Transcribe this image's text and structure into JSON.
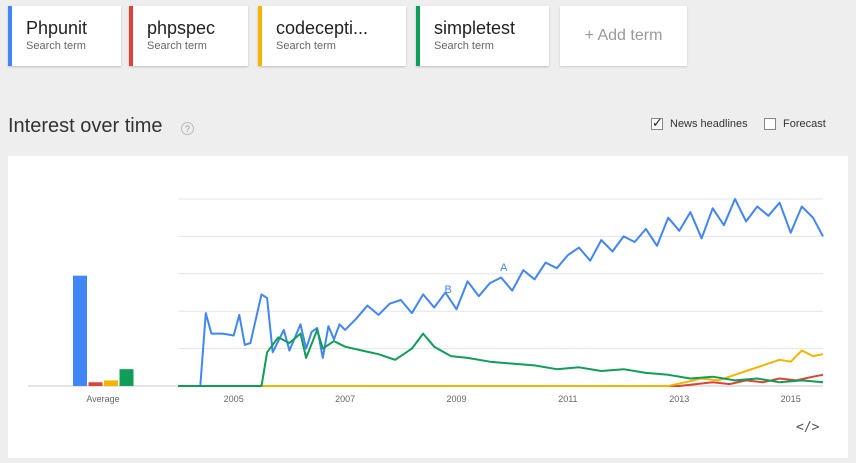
{
  "terms": [
    {
      "name": "Phpunit",
      "sub": "Search term",
      "color": "#4285f4"
    },
    {
      "name": "phpspec",
      "sub": "Search term",
      "color": "#db4437"
    },
    {
      "name": "codecepti...",
      "sub": "Search term",
      "color": "#f4b400"
    },
    {
      "name": "simpletest",
      "sub": "Search term",
      "color": "#0f9d58"
    }
  ],
  "add_term": "+ Add term",
  "section_title": "Interest over time",
  "help_icon": "?",
  "options": {
    "news": "News headlines",
    "news_checked": true,
    "forecast": "Forecast",
    "forecast_checked": false
  },
  "embed_icon": "</>",
  "chart_data": {
    "type": "line",
    "xlabel": "",
    "ylabel": "",
    "x_ticks": [
      "2005",
      "2007",
      "2009",
      "2011",
      "2013",
      "2015"
    ],
    "x_range": [
      2004.0,
      2015.58
    ],
    "ylim": [
      0,
      100
    ],
    "average_label": "Average",
    "averages": [
      {
        "name": "Phpunit",
        "value": 59
      },
      {
        "name": "phpspec",
        "value": 2
      },
      {
        "name": "codecepti...",
        "value": 3
      },
      {
        "name": "simpletest",
        "value": 9
      }
    ],
    "annotations": [
      {
        "label": "A",
        "x": 2009.85,
        "y": 60
      },
      {
        "label": "B",
        "x": 2008.85,
        "y": 48
      }
    ],
    "series": [
      {
        "name": "Phpunit",
        "color": "#4285f4",
        "x": [
          2004.0,
          2004.4,
          2004.5,
          2004.6,
          2004.8,
          2005.0,
          2005.1,
          2005.2,
          2005.3,
          2005.5,
          2005.6,
          2005.7,
          2005.8,
          2005.9,
          2006.0,
          2006.1,
          2006.2,
          2006.3,
          2006.4,
          2006.5,
          2006.6,
          2006.7,
          2006.8,
          2006.9,
          2007.0,
          2007.2,
          2007.4,
          2007.6,
          2007.8,
          2008.0,
          2008.2,
          2008.4,
          2008.6,
          2008.8,
          2009.0,
          2009.2,
          2009.4,
          2009.6,
          2009.8,
          2010.0,
          2010.2,
          2010.4,
          2010.6,
          2010.8,
          2011.0,
          2011.2,
          2011.4,
          2011.6,
          2011.8,
          2012.0,
          2012.2,
          2012.4,
          2012.6,
          2012.8,
          2013.0,
          2013.2,
          2013.4,
          2013.6,
          2013.8,
          2014.0,
          2014.2,
          2014.4,
          2014.6,
          2014.8,
          2015.0,
          2015.2,
          2015.4,
          2015.58
        ],
        "values": [
          0,
          0,
          39,
          28,
          28,
          27,
          38,
          22,
          23,
          49,
          47,
          18,
          24,
          30,
          19,
          26,
          33,
          20,
          29,
          31,
          15,
          32,
          25,
          33,
          30,
          36,
          43,
          38,
          44,
          46,
          39,
          49,
          42,
          50,
          41,
          56,
          48,
          55,
          58,
          51,
          62,
          57,
          66,
          63,
          70,
          74,
          67,
          78,
          72,
          80,
          77,
          84,
          75,
          90,
          83,
          93,
          79,
          95,
          86,
          100,
          88,
          96,
          91,
          98,
          82,
          96,
          90,
          80
        ]
      },
      {
        "name": "phpspec",
        "color": "#db4437",
        "x": [
          2004.0,
          2013.0,
          2013.3,
          2013.6,
          2013.9,
          2014.2,
          2014.5,
          2014.8,
          2015.1,
          2015.4,
          2015.58
        ],
        "values": [
          0,
          0,
          1,
          2,
          1,
          3,
          2,
          4,
          3,
          5,
          6
        ]
      },
      {
        "name": "codecepti...",
        "color": "#f4b400",
        "x": [
          2004.0,
          2012.8,
          2013.1,
          2013.4,
          2013.7,
          2014.0,
          2014.2,
          2014.4,
          2014.6,
          2014.8,
          2015.0,
          2015.2,
          2015.4,
          2015.58
        ],
        "values": [
          0,
          0,
          2,
          4,
          3,
          6,
          8,
          10,
          12,
          14,
          13,
          19,
          16,
          17
        ]
      },
      {
        "name": "simpletest",
        "color": "#0f9d58",
        "x": [
          2004.0,
          2005.5,
          2005.6,
          2005.8,
          2006.0,
          2006.2,
          2006.3,
          2006.5,
          2006.6,
          2006.8,
          2007.0,
          2007.3,
          2007.6,
          2007.9,
          2008.2,
          2008.4,
          2008.6,
          2008.9,
          2009.2,
          2009.6,
          2010.0,
          2010.4,
          2010.8,
          2011.2,
          2011.6,
          2012.0,
          2012.4,
          2012.8,
          2013.2,
          2013.6,
          2014.0,
          2014.4,
          2014.8,
          2015.2,
          2015.58
        ],
        "values": [
          0,
          0,
          18,
          26,
          23,
          28,
          15,
          30,
          20,
          24,
          21,
          19,
          17,
          14,
          20,
          28,
          21,
          16,
          15,
          13,
          12,
          11,
          9,
          10,
          8,
          9,
          7,
          6,
          4,
          5,
          3,
          4,
          2,
          3,
          2
        ]
      }
    ]
  }
}
